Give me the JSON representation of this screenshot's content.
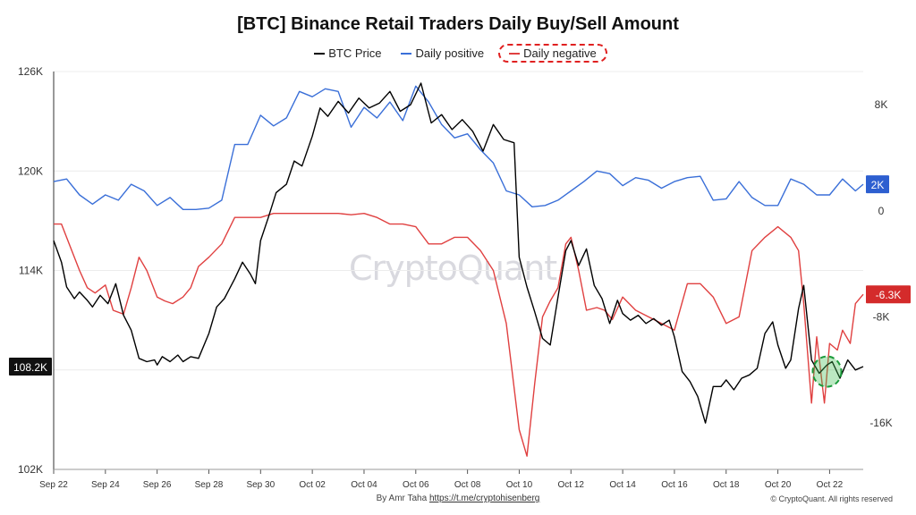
{
  "page": {
    "watermark": "CryptoQuant",
    "footer_author": "By Amr Taha",
    "footer_link": "https://t.me/cryptohisenberg",
    "footer_copyright": "© CryptoQuant. All rights reserved"
  },
  "chart_data": {
    "type": "line",
    "title": "[BTC] Binance Retail Traders Daily Buy/Sell Amount",
    "legend": [
      {
        "name": "BTC Price",
        "color": "#000000"
      },
      {
        "name": "Daily positive",
        "color": "#3a6fd8"
      },
      {
        "name": "Daily negative",
        "color": "#e04040",
        "highlighted": true
      }
    ],
    "legend_position": "top-center",
    "grid": true,
    "x_ticks": [
      "Sep 22",
      "Sep 24",
      "Sep 26",
      "Sep 28",
      "Sep 30",
      "Oct 02",
      "Oct 04",
      "Oct 06",
      "Oct 08",
      "Oct 10",
      "Oct 12",
      "Oct 14",
      "Oct 16",
      "Oct 18",
      "Oct 20",
      "Oct 22"
    ],
    "x_range_days": [
      0,
      31.3
    ],
    "left_axis": {
      "ticks": [
        "126K",
        "120K",
        "114K",
        "108K",
        "102K"
      ],
      "tick_values": [
        126000,
        120000,
        114000,
        108000,
        102000
      ],
      "range": [
        102000,
        126000
      ]
    },
    "right_axis": {
      "ticks": [
        "8K",
        "0",
        "-8K",
        "-16K"
      ],
      "tick_values": [
        8000,
        0,
        -8000,
        -16000
      ],
      "range": [
        -19500,
        10500
      ]
    },
    "current_value_labels": [
      {
        "series": "BTC Price",
        "text": "108.2K",
        "value": 108200,
        "axis": "left",
        "color": "#111111"
      },
      {
        "series": "Daily positive",
        "text": "2K",
        "value": 2000,
        "axis": "right",
        "color": "#2d5fd0"
      },
      {
        "series": "Daily negative",
        "text": "-6.3K",
        "value": -6300,
        "axis": "right",
        "color": "#d42b2b"
      }
    ],
    "series": [
      {
        "name": "BTC Price",
        "axis": "left",
        "color": "#000000",
        "x": [
          0,
          0.3,
          0.5,
          0.8,
          1.0,
          1.3,
          1.5,
          1.8,
          2.1,
          2.4,
          2.7,
          3.0,
          3.3,
          3.6,
          3.9,
          4.0,
          4.2,
          4.5,
          4.8,
          5.0,
          5.3,
          5.6,
          6.0,
          6.3,
          6.6,
          7.0,
          7.3,
          7.6,
          7.8,
          8.0,
          8.3,
          8.6,
          9.0,
          9.3,
          9.6,
          10.0,
          10.3,
          10.6,
          11.0,
          11.4,
          11.8,
          12.2,
          12.6,
          13.0,
          13.4,
          13.8,
          14.2,
          14.6,
          15.0,
          15.4,
          15.8,
          16.2,
          16.6,
          17.0,
          17.4,
          17.8,
          18.0,
          18.3,
          18.6,
          18.9,
          19.2,
          19.5,
          19.8,
          20.0,
          20.3,
          20.6,
          20.9,
          21.2,
          21.5,
          21.8,
          22.0,
          22.3,
          22.6,
          22.9,
          23.2,
          23.5,
          23.8,
          24.0,
          24.3,
          24.6,
          24.9,
          25.2,
          25.5,
          25.8,
          26.0,
          26.3,
          26.6,
          26.9,
          27.2,
          27.5,
          27.8,
          28.0,
          28.3,
          28.5,
          28.8,
          29.0,
          29.3,
          29.6,
          29.9,
          30.1,
          30.4,
          30.7,
          31.0,
          31.3
        ],
        "y": [
          115800,
          114500,
          113000,
          112300,
          112700,
          112200,
          111800,
          112500,
          112000,
          113200,
          111300,
          110400,
          108700,
          108500,
          108600,
          108300,
          108800,
          108500,
          108900,
          108500,
          108800,
          108700,
          110200,
          111800,
          112300,
          113500,
          114500,
          113800,
          113200,
          115800,
          117200,
          118700,
          119200,
          120600,
          120300,
          122100,
          123800,
          123300,
          124200,
          123500,
          124400,
          123800,
          124100,
          124800,
          123600,
          124000,
          125300,
          122900,
          123400,
          122500,
          123100,
          122400,
          121200,
          122800,
          121900,
          121700,
          114800,
          113000,
          111500,
          109900,
          109500,
          112400,
          115200,
          115800,
          114300,
          115300,
          113100,
          112300,
          110800,
          112200,
          111400,
          111000,
          111300,
          110800,
          111100,
          110700,
          111000,
          110000,
          107900,
          107300,
          106400,
          104800,
          107000,
          107000,
          107400,
          106800,
          107500,
          107700,
          108100,
          110200,
          110900,
          109500,
          108100,
          108600,
          111700,
          113100,
          108600,
          107800,
          108300,
          108500,
          107500,
          108600,
          108000,
          108200
        ]
      },
      {
        "name": "Daily positive",
        "axis": "right",
        "color": "#3a6fd8",
        "x": [
          0,
          0.5,
          1.0,
          1.5,
          2.0,
          2.5,
          3.0,
          3.5,
          4.0,
          4.5,
          5.0,
          5.5,
          6.0,
          6.5,
          7.0,
          7.5,
          8.0,
          8.5,
          9.0,
          9.5,
          10.0,
          10.5,
          11.0,
          11.5,
          12.0,
          12.5,
          13.0,
          13.5,
          14.0,
          14.5,
          15.0,
          15.5,
          16.0,
          16.5,
          17.0,
          17.5,
          18.0,
          18.5,
          19.0,
          19.5,
          20.0,
          20.5,
          21.0,
          21.5,
          22.0,
          22.5,
          23.0,
          23.5,
          24.0,
          24.5,
          25.0,
          25.5,
          26.0,
          26.5,
          27.0,
          27.5,
          28.0,
          28.5,
          29.0,
          29.5,
          30.0,
          30.5,
          31.0,
          31.3
        ],
        "y": [
          2200,
          2400,
          1200,
          500,
          1200,
          800,
          2000,
          1500,
          400,
          1000,
          100,
          100,
          200,
          800,
          5000,
          5000,
          7200,
          6400,
          7000,
          9000,
          8600,
          9200,
          9000,
          6300,
          7800,
          7000,
          8200,
          6800,
          9400,
          8200,
          6500,
          5500,
          5800,
          4600,
          3600,
          1500,
          1200,
          300,
          400,
          800,
          1500,
          2200,
          3000,
          2800,
          1900,
          2500,
          2300,
          1700,
          2200,
          2500,
          2600,
          800,
          900,
          2200,
          1000,
          400,
          400,
          2400,
          2000,
          1200,
          1200,
          2400,
          1500,
          2000
        ]
      },
      {
        "name": "Daily negative",
        "axis": "right",
        "color": "#e04040",
        "x": [
          0,
          0.3,
          0.6,
          1.0,
          1.3,
          1.6,
          2.0,
          2.3,
          2.7,
          3.0,
          3.3,
          3.6,
          4.0,
          4.3,
          4.6,
          5.0,
          5.3,
          5.6,
          6.0,
          6.5,
          7.0,
          7.5,
          8.0,
          8.5,
          9.0,
          9.5,
          10.0,
          10.5,
          11.0,
          11.5,
          12.0,
          12.5,
          13.0,
          13.5,
          14.0,
          14.5,
          15.0,
          15.5,
          16.0,
          16.5,
          17.0,
          17.5,
          18.0,
          18.3,
          18.6,
          18.9,
          19.2,
          19.5,
          19.8,
          20.0,
          20.3,
          20.6,
          21.0,
          21.3,
          21.6,
          22.0,
          22.5,
          23.0,
          23.5,
          24.0,
          24.5,
          25.0,
          25.5,
          26.0,
          26.5,
          27.0,
          27.5,
          28.0,
          28.5,
          28.8,
          29.0,
          29.3,
          29.5,
          29.8,
          30.0,
          30.3,
          30.5,
          30.8,
          31.0,
          31.3
        ],
        "y": [
          -1000,
          -1000,
          -2500,
          -4500,
          -5800,
          -6200,
          -5600,
          -7500,
          -7800,
          -5800,
          -3500,
          -4500,
          -6500,
          -6800,
          -7000,
          -6500,
          -5800,
          -4200,
          -3500,
          -2500,
          -500,
          -500,
          -500,
          -200,
          -200,
          -200,
          -200,
          -200,
          -200,
          -300,
          -200,
          -500,
          -1000,
          -1000,
          -1200,
          -2500,
          -2500,
          -2000,
          -2000,
          -3000,
          -4500,
          -8500,
          -16500,
          -18500,
          -13000,
          -8000,
          -6800,
          -5800,
          -2500,
          -2000,
          -4500,
          -7500,
          -7300,
          -7500,
          -8200,
          -6500,
          -7500,
          -8000,
          -8500,
          -9000,
          -5500,
          -5500,
          -6500,
          -8500,
          -8000,
          -3000,
          -2000,
          -1200,
          -2000,
          -3000,
          -7000,
          -14500,
          -9500,
          -14500,
          -10000,
          -10500,
          -9000,
          -10000,
          -7000,
          -6300
        ]
      }
    ]
  }
}
